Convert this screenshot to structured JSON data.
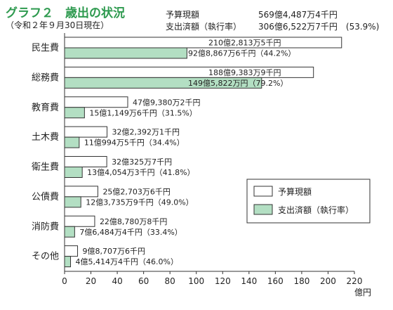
{
  "header": {
    "title": "グラフ２　歳出の状況",
    "subtitle": "（令和２年９月30日現在）",
    "summary": [
      {
        "label": "予算現額",
        "value": "569億4,487万4千円"
      },
      {
        "label": "支出済額（執行率）",
        "value": "306億6,522万7千円　(53.9%)"
      }
    ]
  },
  "chart_data": {
    "type": "bar",
    "orientation": "horizontal",
    "categories": [
      "民生費",
      "総務費",
      "教育費",
      "土木費",
      "衛生費",
      "公債費",
      "消防費",
      "その他"
    ],
    "series": [
      {
        "name": "予算現額",
        "color": "#ffffff",
        "values": [
          210.28,
          188.94,
          47.94,
          32.24,
          32.03,
          25.27,
          22.88,
          9.87
        ],
        "labels": [
          "210億2,813万5千円",
          "188億9,383万9千円",
          "47億9,380万2千円",
          "32億2,392万1千円",
          "32億325万7千円",
          "25億2,703万6千円",
          "22億8,780万8千円",
          "9億8,707万6千円"
        ]
      },
      {
        "name": "支出済額（執行率）",
        "color": "#b3dfc3",
        "values": [
          92.89,
          149.58,
          15.11,
          11.1,
          13.41,
          12.37,
          7.65,
          4.54
        ],
        "labels": [
          "92億8,867万6千円（44.2%）",
          "149億5,822万円（79.2%）",
          "15億1,149万6千円（31.5%）",
          "11億994万5千円（34.4%）",
          "13億4,054万3千円（41.8%）",
          "12億3,735万9千円（49.0%）",
          "7億6,484万4千円（33.4%）",
          "4億5,414万4千円（46.0%）"
        ]
      }
    ],
    "xlim": [
      0,
      220
    ],
    "xticks": [
      0,
      20,
      40,
      60,
      80,
      100,
      120,
      140,
      160,
      180,
      200,
      220
    ],
    "unit": "億円",
    "legend": "right"
  }
}
